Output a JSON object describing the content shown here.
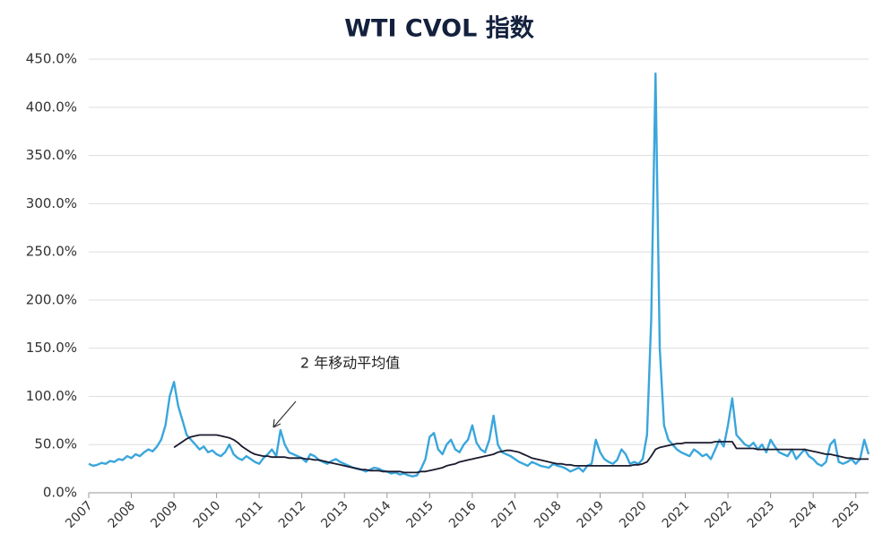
{
  "chart_data": {
    "type": "line",
    "title": "WTI CVOL 指数",
    "annotation": "2 年移动平均值",
    "x": [
      2007.0,
      2007.1,
      2007.2,
      2007.3,
      2007.4,
      2007.5,
      2007.6,
      2007.7,
      2007.8,
      2007.9,
      2008.0,
      2008.1,
      2008.2,
      2008.3,
      2008.4,
      2008.5,
      2008.6,
      2008.7,
      2008.8,
      2008.9,
      2009.0,
      2009.1,
      2009.2,
      2009.3,
      2009.4,
      2009.5,
      2009.6,
      2009.7,
      2009.8,
      2009.9,
      2010.0,
      2010.1,
      2010.2,
      2010.3,
      2010.4,
      2010.5,
      2010.6,
      2010.7,
      2010.8,
      2010.9,
      2011.0,
      2011.1,
      2011.2,
      2011.3,
      2011.4,
      2011.5,
      2011.6,
      2011.7,
      2011.8,
      2011.9,
      2012.0,
      2012.1,
      2012.2,
      2012.3,
      2012.4,
      2012.5,
      2012.6,
      2012.7,
      2012.8,
      2012.9,
      2013.0,
      2013.1,
      2013.2,
      2013.3,
      2013.4,
      2013.5,
      2013.6,
      2013.7,
      2013.8,
      2013.9,
      2014.0,
      2014.1,
      2014.2,
      2014.3,
      2014.4,
      2014.5,
      2014.6,
      2014.7,
      2014.8,
      2014.9,
      2015.0,
      2015.1,
      2015.2,
      2015.3,
      2015.4,
      2015.5,
      2015.6,
      2015.7,
      2015.8,
      2015.9,
      2016.0,
      2016.1,
      2016.2,
      2016.3,
      2016.4,
      2016.5,
      2016.6,
      2016.7,
      2016.8,
      2016.9,
      2017.0,
      2017.1,
      2017.2,
      2017.3,
      2017.4,
      2017.5,
      2017.6,
      2017.7,
      2017.8,
      2017.9,
      2018.0,
      2018.1,
      2018.2,
      2018.3,
      2018.4,
      2018.5,
      2018.6,
      2018.7,
      2018.8,
      2018.9,
      2019.0,
      2019.1,
      2019.2,
      2019.3,
      2019.4,
      2019.5,
      2019.6,
      2019.7,
      2019.8,
      2019.9,
      2020.0,
      2020.1,
      2020.2,
      2020.3,
      2020.4,
      2020.5,
      2020.6,
      2020.7,
      2020.8,
      2020.9,
      2021.0,
      2021.1,
      2021.2,
      2021.3,
      2021.4,
      2021.5,
      2021.6,
      2021.7,
      2021.8,
      2021.9,
      2022.0,
      2022.1,
      2022.2,
      2022.3,
      2022.4,
      2022.5,
      2022.6,
      2022.7,
      2022.8,
      2022.9,
      2023.0,
      2023.1,
      2023.2,
      2023.3,
      2023.4,
      2023.5,
      2023.6,
      2023.7,
      2023.8,
      2023.9,
      2024.0,
      2024.1,
      2024.2,
      2024.3,
      2024.4,
      2024.5,
      2024.6,
      2024.7,
      2024.8,
      2024.9,
      2025.0,
      2025.1,
      2025.2,
      2025.3
    ],
    "series": [
      {
        "color": "#3aa6dc",
        "values": [
          30,
          28,
          29,
          31,
          30,
          33,
          32,
          35,
          34,
          38,
          36,
          40,
          38,
          42,
          45,
          43,
          48,
          55,
          70,
          100,
          115,
          90,
          75,
          60,
          55,
          50,
          45,
          48,
          42,
          44,
          40,
          38,
          42,
          50,
          40,
          36,
          34,
          38,
          35,
          32,
          30,
          36,
          40,
          45,
          38,
          65,
          50,
          42,
          40,
          38,
          36,
          32,
          40,
          38,
          34,
          32,
          30,
          33,
          35,
          32,
          30,
          28,
          26,
          25,
          24,
          22,
          24,
          26,
          25,
          23,
          22,
          20,
          21,
          19,
          20,
          18,
          17,
          18,
          25,
          35,
          58,
          62,
          45,
          40,
          50,
          55,
          45,
          42,
          50,
          55,
          70,
          52,
          45,
          42,
          55,
          80,
          50,
          42,
          40,
          38,
          35,
          32,
          30,
          28,
          32,
          30,
          28,
          27,
          26,
          30,
          28,
          27,
          25,
          22,
          24,
          26,
          22,
          28,
          30,
          55,
          42,
          35,
          32,
          30,
          34,
          45,
          40,
          30,
          32,
          30,
          35,
          60,
          180,
          435,
          150,
          70,
          55,
          50,
          45,
          42,
          40,
          38,
          45,
          42,
          38,
          40,
          35,
          45,
          55,
          48,
          70,
          98,
          60,
          55,
          50,
          48,
          52,
          45,
          50,
          42,
          55,
          48,
          42,
          40,
          38,
          45,
          35,
          40,
          45,
          38,
          35,
          30,
          28,
          32,
          50,
          55,
          32,
          30,
          32,
          35,
          30,
          35,
          55,
          40
        ]
      },
      {
        "name": "2 年移动平均值",
        "color": "#1a1a2e",
        "values": [
          null,
          null,
          null,
          null,
          null,
          null,
          null,
          null,
          null,
          null,
          null,
          null,
          null,
          null,
          null,
          null,
          null,
          null,
          null,
          null,
          47,
          50,
          53,
          56,
          58,
          59,
          60,
          60,
          60,
          60,
          60,
          59,
          58,
          57,
          55,
          52,
          48,
          45,
          42,
          40,
          39,
          38,
          38,
          37,
          37,
          37,
          37,
          36,
          36,
          36,
          36,
          35,
          35,
          34,
          34,
          33,
          32,
          31,
          30,
          29,
          28,
          27,
          26,
          25,
          24,
          24,
          23,
          23,
          23,
          22,
          22,
          22,
          22,
          22,
          21,
          21,
          21,
          21,
          22,
          22,
          23,
          24,
          25,
          26,
          28,
          29,
          30,
          32,
          33,
          34,
          35,
          36,
          37,
          38,
          39,
          40,
          42,
          43,
          44,
          44,
          43,
          42,
          40,
          38,
          36,
          35,
          34,
          33,
          32,
          31,
          30,
          30,
          29,
          29,
          28,
          28,
          28,
          28,
          28,
          28,
          28,
          28,
          28,
          28,
          28,
          28,
          28,
          28,
          29,
          29,
          30,
          32,
          38,
          45,
          47,
          48,
          49,
          50,
          51,
          51,
          52,
          52,
          52,
          52,
          52,
          52,
          52,
          53,
          53,
          53,
          53,
          53,
          46,
          46,
          46,
          46,
          46,
          45,
          45,
          45,
          45,
          45,
          45,
          45,
          45,
          45,
          45,
          45,
          45,
          44,
          43,
          42,
          41,
          40,
          40,
          39,
          38,
          37,
          36,
          36,
          35,
          35,
          35,
          35
        ]
      }
    ],
    "xlim": [
      2007,
      2025.3
    ],
    "xticks": [
      2007,
      2008,
      2009,
      2010,
      2011,
      2012,
      2013,
      2014,
      2015,
      2016,
      2017,
      2018,
      2019,
      2020,
      2021,
      2022,
      2023,
      2024,
      2025
    ],
    "ylim": [
      0,
      450
    ],
    "yticks": [
      {
        "value": 0,
        "label": "0.0%"
      },
      {
        "value": 50,
        "label": "50.0%"
      },
      {
        "value": 100,
        "label": "100.0%"
      },
      {
        "value": 150,
        "label": "150.0%"
      },
      {
        "value": 200,
        "label": "200.0%"
      },
      {
        "value": 250,
        "label": "250.0%"
      },
      {
        "value": 300,
        "label": "300.0%"
      },
      {
        "value": 350,
        "label": "350.0%"
      },
      {
        "value": 400,
        "label": "400.0%"
      },
      {
        "value": 450,
        "label": "450.0%"
      }
    ],
    "grid": true
  }
}
